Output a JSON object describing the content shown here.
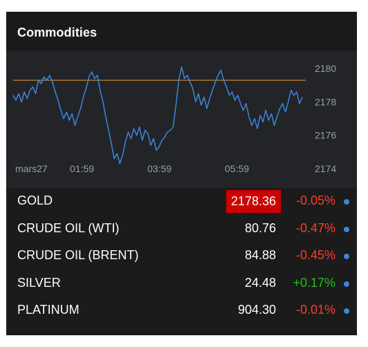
{
  "widget": {
    "title": "Commodities"
  },
  "chart": {
    "line_color": "#3e86dc",
    "ref_line_color": "#a8782a",
    "ref_value": 2179.3,
    "y_ticks": [
      "2180",
      "2178",
      "2176",
      "2174"
    ],
    "x_ticks": [
      "mars27",
      "01:59",
      "03:59",
      "05:59"
    ]
  },
  "chart_data": {
    "type": "line",
    "title": "",
    "xlabel": "",
    "ylabel": "",
    "ylim": [
      2174,
      2180.3
    ],
    "x_tick_labels": [
      "mars27",
      "01:59",
      "03:59",
      "05:59"
    ],
    "y_tick_labels": [
      "2180",
      "2178",
      "2176",
      "2174"
    ],
    "reference_line": 2179.3,
    "series": [
      {
        "values": [
          2178.4,
          2178.1,
          2178.5,
          2178.0,
          2178.6,
          2178.2,
          2178.7,
          2178.9,
          2178.5,
          2179.3,
          2179.1,
          2179.5,
          2179.3,
          2179.6,
          2179.2,
          2178.6,
          2178.1,
          2177.5,
          2177.0,
          2177.4,
          2176.9,
          2177.3,
          2176.6,
          2177.1,
          2177.6,
          2178.3,
          2178.8,
          2179.5,
          2179.8,
          2179.4,
          2179.6,
          2178.7,
          2178.0,
          2177.1,
          2176.3,
          2175.5,
          2174.6,
          2174.9,
          2174.3,
          2174.8,
          2175.6,
          2176.2,
          2175.8,
          2176.4,
          2176.0,
          2176.5,
          2175.7,
          2176.3,
          2176.1,
          2175.4,
          2175.8,
          2175.1,
          2175.3,
          2175.7,
          2175.9,
          2176.2,
          2176.3,
          2176.5,
          2177.8,
          2179.3,
          2180.1,
          2179.4,
          2179.6,
          2179.2,
          2178.8,
          2178.0,
          2178.5,
          2177.8,
          2178.3,
          2177.6,
          2178.2,
          2178.7,
          2179.2,
          2179.6,
          2179.9,
          2179.3,
          2178.9,
          2178.4,
          2178.6,
          2178.1,
          2178.4,
          2177.9,
          2177.5,
          2177.9,
          2177.1,
          2176.6,
          2177.0,
          2176.4,
          2177.2,
          2176.8,
          2177.5,
          2176.9,
          2177.3,
          2176.6,
          2177.1,
          2177.6,
          2177.9,
          2177.4,
          2178.0,
          2178.7,
          2178.4,
          2178.6,
          2177.9,
          2178.3
        ]
      }
    ],
    "grid": false,
    "legend": "none"
  },
  "commodities": [
    {
      "name": "GOLD",
      "price": "2178.36",
      "change": "-0.05%",
      "dir": "down",
      "highlight": true
    },
    {
      "name": "CRUDE OIL (WTI)",
      "price": "80.76",
      "change": "-0.47%",
      "dir": "down",
      "highlight": false
    },
    {
      "name": "CRUDE OIL (BRENT)",
      "price": "84.88",
      "change": "-0.45%",
      "dir": "down",
      "highlight": false
    },
    {
      "name": "SILVER",
      "price": "24.48",
      "change": "+0.17%",
      "dir": "up",
      "highlight": false
    },
    {
      "name": "PLATINUM",
      "price": "904.30",
      "change": "-0.01%",
      "dir": "down",
      "highlight": false
    }
  ],
  "colors": {
    "down": "#ff3b30",
    "up": "#22c01d",
    "highlight": "#cc0000",
    "dot": "#3b84e0"
  }
}
